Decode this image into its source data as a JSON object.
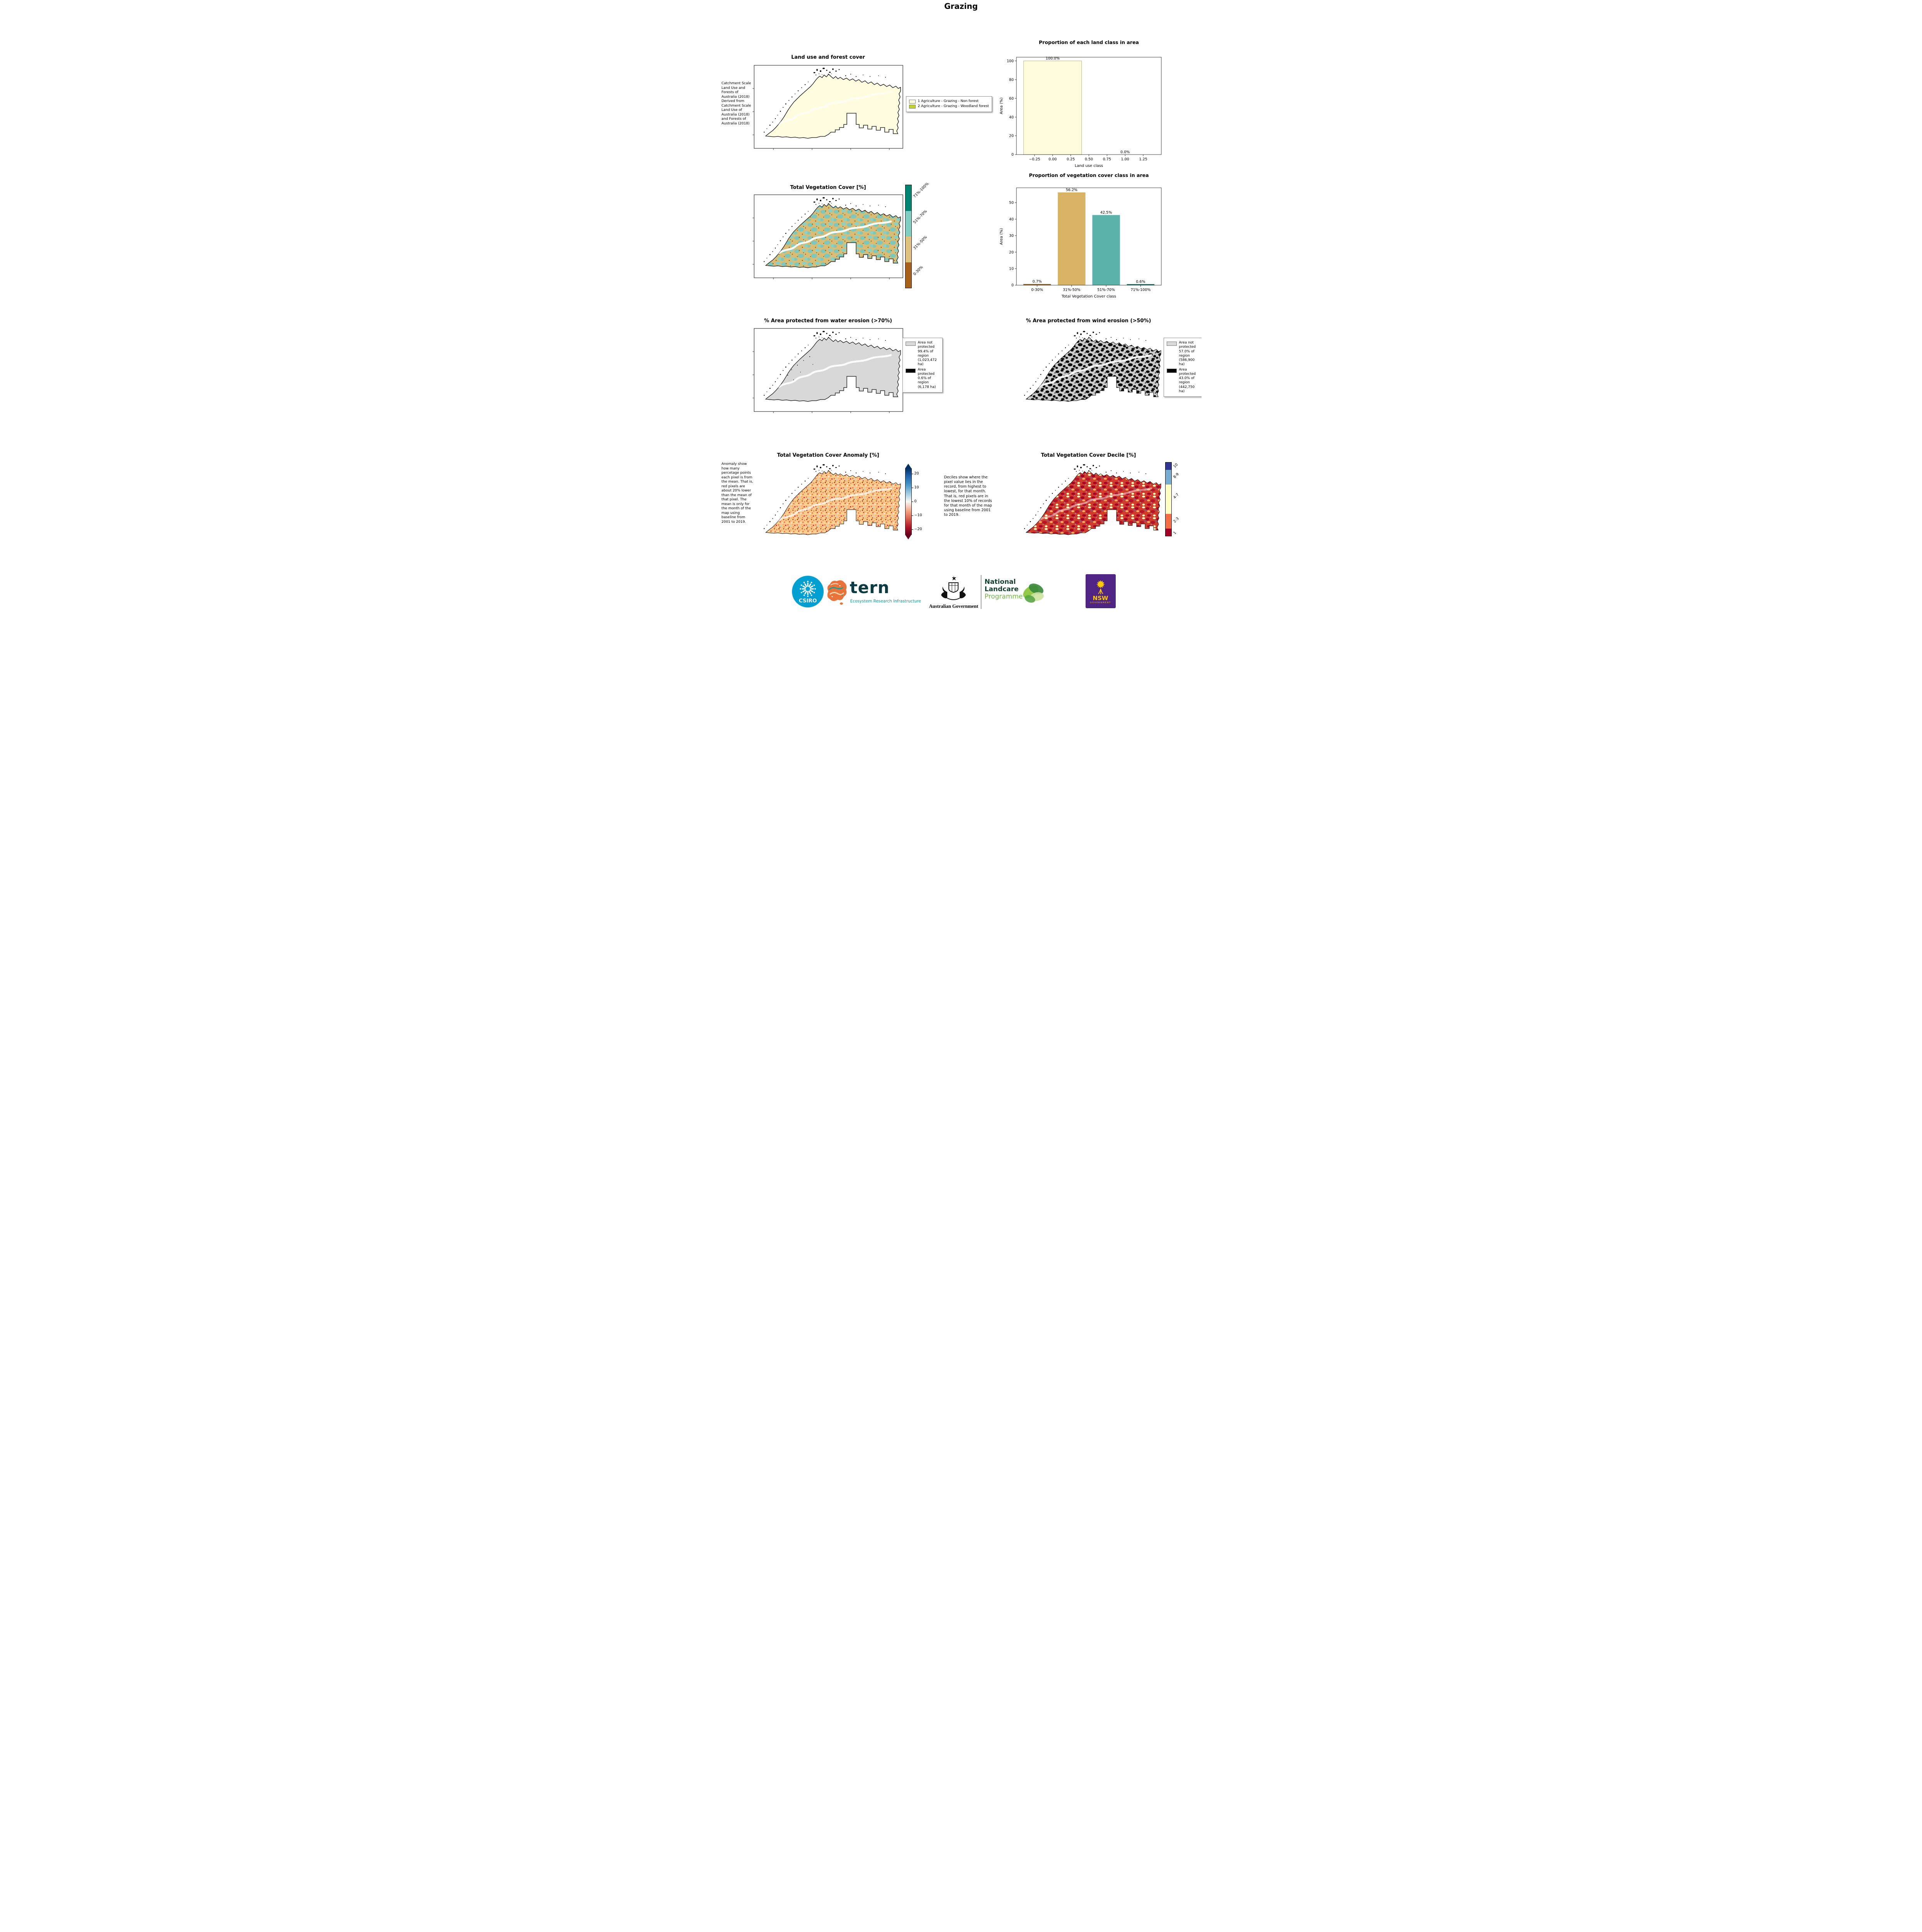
{
  "page": {
    "title": "Grazing"
  },
  "maps": {
    "land_use": {
      "title": "Land use and forest cover",
      "caption": " Catchment Scale Land Use and Forests of Australia (2018) Derived from Catchment Scale Land Use of Australia (2018) and Forests of Australia (2018)",
      "legend": [
        {
          "label": "1 Agriculture - Grazing - Non forest",
          "color": "#fffcdb"
        },
        {
          "label": "2 Agriculture - Grazing - Woodland forest",
          "color": "#c3d230"
        }
      ]
    },
    "veg_cover": {
      "title": "Total Vegetation Cover [%]",
      "colorbar": [
        {
          "label": "71%-100%",
          "color": "#018571"
        },
        {
          "label": "51%-70%",
          "color": "#80cdc1"
        },
        {
          "label": "31%-50%",
          "color": "#dfc27d"
        },
        {
          "label": "0-30%",
          "color": "#a6611a"
        }
      ]
    },
    "water_erosion": {
      "title": "% Area protected from water erosion (>70%)",
      "legend": [
        {
          "label": "Area not protected 99.4% of region (1,023,472 ha)",
          "color": "#d8d8d8"
        },
        {
          "label": "Area protected 0.6% of region (6,178 ha)",
          "color": "#000000"
        }
      ]
    },
    "wind_erosion": {
      "title": "% Area protected from wind erosion (>50%)",
      "legend": [
        {
          "label": "Area not protected 57.0% of region (586,900 ha)",
          "color": "#d8d8d8"
        },
        {
          "label": "Area protected 43.0% of region (442,750 ha)",
          "color": "#000000"
        }
      ]
    },
    "anomaly": {
      "title": "Total Vegetation Cover Anomaly [%]",
      "caption": "Anomaly show how many percetage points each pixel is from the mean. That is, red pixels are about 20% lower than the mean of that pixel. The mean is only for the month of the map using baseline from 2001 to 2019.",
      "colorbar_ticks": [
        "20",
        "10",
        "0",
        "−10",
        "−20"
      ]
    },
    "decile": {
      "title": "Total Vegetation Cover Decile [%]",
      "caption": "Deciles show where the pixel value lies in the record, from highest to lowest, for that month. That is, red pixels are in the lowest 10% of records for that month of the map using baseline from 2001 to 2019.",
      "colorbar": [
        {
          "label": "10",
          "color": "#313695",
          "span": 1
        },
        {
          "label": "8-9",
          "color": "#74add1",
          "span": 2
        },
        {
          "label": "4-7",
          "color": "#ffffbf",
          "span": 4
        },
        {
          "label": "2-3",
          "color": "#f46d43",
          "span": 2
        },
        {
          "label": "1",
          "color": "#a50026",
          "span": 1
        }
      ]
    }
  },
  "chart_data": [
    {
      "type": "bar",
      "title": "Proportion of each land class in area",
      "xlabel": "Land use class",
      "ylabel": "Area (%)",
      "x_positions": [
        0,
        1
      ],
      "values": [
        100.0,
        0.0
      ],
      "bar_labels": [
        "100.0%",
        "0.0%"
      ],
      "bar_colors": [
        "#fffcdb",
        "#c3d230"
      ],
      "bar_edge": "#a0a06a",
      "bar_width": 0.8,
      "xlim": [
        -0.5,
        1.5
      ],
      "ylim": [
        0,
        104
      ],
      "yticks": [
        0,
        20,
        40,
        60,
        80,
        100
      ],
      "xticks": [
        -0.25,
        0.0,
        0.25,
        0.5,
        0.75,
        1.0,
        1.25
      ],
      "xtick_labels": [
        "−0.25",
        "0.00",
        "0.25",
        "0.50",
        "0.75",
        "1.00",
        "1.25"
      ]
    },
    {
      "type": "bar",
      "title": "Proportion of vegetation cover class in area",
      "xlabel": "Total Vegetation Cover class",
      "ylabel": "Area (%)",
      "categories": [
        "0-30%",
        "31%-50%",
        "51%-70%",
        "71%-100%"
      ],
      "x_positions": [
        0,
        1,
        2,
        3
      ],
      "values": [
        0.7,
        56.2,
        42.5,
        0.6
      ],
      "bar_labels": [
        "0.7%",
        "56.2%",
        "42.5%",
        "0.6%"
      ],
      "bar_colors": [
        "#a6611a",
        "#d8b365",
        "#5ab4ac",
        "#01665e"
      ],
      "bar_edge": "none",
      "bar_width": 0.8,
      "xlim": [
        -0.6,
        3.6
      ],
      "ylim": [
        0,
        59
      ],
      "yticks": [
        0,
        10,
        20,
        30,
        40,
        50
      ],
      "xticks": [
        0,
        1,
        2,
        3
      ],
      "xtick_labels": [
        "0-30%",
        "31%-50%",
        "51%-70%",
        "71%-100%"
      ]
    }
  ],
  "footer": {
    "csiro": "CSIRO",
    "tern": "tern",
    "tern_sub": "Ecosystem Research Infrastructure",
    "aus_gov": "Australian Government",
    "landcare_line1": "National",
    "landcare_line2": "Landcare",
    "landcare_line3": "Programme",
    "nsw": "NSW",
    "nsw_sub": "GOVERNMENT"
  }
}
